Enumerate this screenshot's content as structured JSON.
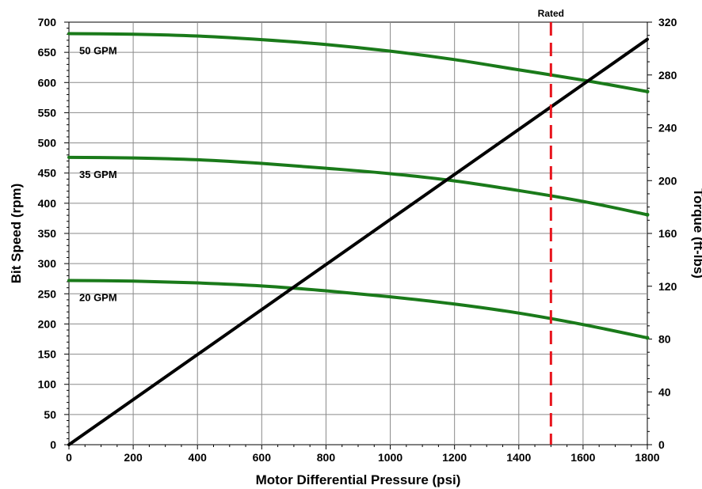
{
  "chart_data": {
    "type": "line",
    "xlabel": "Motor Differential Pressure (psi)",
    "ylabel": "Bit Speed (rpm)",
    "y2label": "Torque (ft-lbs)",
    "xlim": [
      0,
      1800
    ],
    "ylim": [
      0,
      700
    ],
    "y2lim": [
      0,
      320
    ],
    "x_ticks": [
      0,
      200,
      400,
      600,
      800,
      1000,
      1200,
      1400,
      1600,
      1800
    ],
    "y_ticks": [
      0,
      50,
      100,
      150,
      200,
      250,
      300,
      350,
      400,
      450,
      500,
      550,
      600,
      650,
      700
    ],
    "y2_ticks": [
      0,
      40,
      80,
      120,
      160,
      200,
      240,
      280,
      320
    ],
    "grid": true,
    "colors": {
      "speed": "#1a7a1a",
      "torque": "#000000",
      "rated": "#e8141c"
    },
    "series": [
      {
        "name": "50 GPM",
        "axis": "left",
        "x": [
          0,
          200,
          400,
          600,
          800,
          1000,
          1200,
          1400,
          1600,
          1800
        ],
        "values": [
          681,
          680,
          677,
          671,
          663,
          652,
          638,
          621,
          604,
          585
        ]
      },
      {
        "name": "35 GPM",
        "axis": "left",
        "x": [
          0,
          200,
          400,
          600,
          800,
          1000,
          1200,
          1400,
          1600,
          1800
        ],
        "values": [
          476,
          475,
          472,
          466,
          458,
          449,
          437,
          421,
          403,
          381
        ]
      },
      {
        "name": "20 GPM",
        "axis": "left",
        "x": [
          0,
          200,
          400,
          600,
          800,
          1000,
          1200,
          1400,
          1600,
          1800
        ],
        "values": [
          272,
          271,
          268,
          263,
          255,
          245,
          233,
          218,
          199,
          177
        ]
      },
      {
        "axis": "right",
        "x": [
          0,
          1800
        ],
        "values": [
          0,
          307
        ]
      }
    ],
    "annotations": [
      {
        "label": "Rated",
        "x": 1500
      }
    ]
  }
}
